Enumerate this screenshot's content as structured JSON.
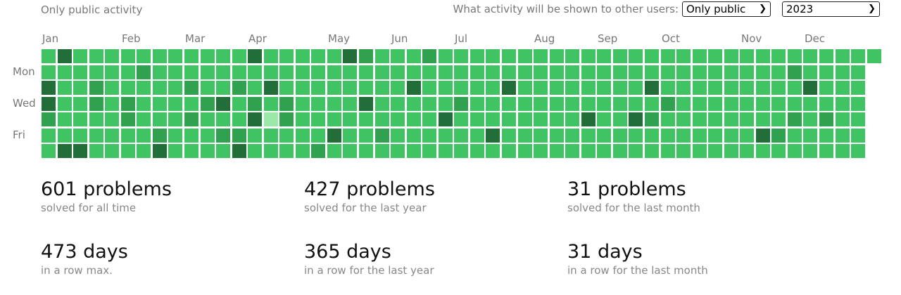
{
  "header": {
    "subtitle": "Only public activity",
    "visibility_label": "What activity will be shown to other users:",
    "visibility_value": "Only public",
    "year_value": "2023"
  },
  "colors": {
    "normal": "#40c463",
    "medium": "#30a14e",
    "dark": "#216e39",
    "light": "#9be9a8"
  },
  "months": [
    "Jan",
    "Feb",
    "Mar",
    "Apr",
    "May",
    "Jun",
    "Jul",
    "Aug",
    "Sep",
    "Oct",
    "Nov",
    "Dec"
  ],
  "day_labels": [
    "Mon",
    "Wed",
    "Fri"
  ],
  "heatmap": {
    "weeks": 53,
    "first_week_start_day": 0,
    "last_week_days": 1,
    "levels": {
      "dark": [
        [
          1,
          0
        ],
        [
          13,
          0
        ],
        [
          19,
          0
        ],
        [
          0,
          2
        ],
        [
          14,
          2
        ],
        [
          23,
          2
        ],
        [
          29,
          2
        ],
        [
          38,
          2
        ],
        [
          48,
          2
        ],
        [
          0,
          3
        ],
        [
          11,
          3
        ],
        [
          20,
          3
        ],
        [
          13,
          4
        ],
        [
          25,
          4
        ],
        [
          34,
          4
        ],
        [
          37,
          4
        ],
        [
          18,
          5
        ],
        [
          28,
          5
        ],
        [
          45,
          5
        ],
        [
          1,
          6
        ],
        [
          2,
          6
        ],
        [
          7,
          6
        ],
        [
          12,
          6
        ]
      ],
      "medium": [
        [
          6,
          1
        ],
        [
          47,
          1
        ],
        [
          3,
          2
        ],
        [
          9,
          2
        ],
        [
          12,
          2
        ],
        [
          3,
          3
        ],
        [
          5,
          3
        ],
        [
          10,
          3
        ],
        [
          13,
          3
        ],
        [
          15,
          3
        ],
        [
          26,
          3
        ],
        [
          39,
          3
        ],
        [
          0,
          4
        ],
        [
          5,
          4
        ],
        [
          9,
          4
        ],
        [
          15,
          4
        ],
        [
          38,
          4
        ],
        [
          47,
          4
        ],
        [
          49,
          4
        ],
        [
          7,
          5
        ],
        [
          11,
          5
        ],
        [
          12,
          5
        ],
        [
          21,
          5
        ],
        [
          46,
          5
        ],
        [
          24,
          0
        ],
        [
          20,
          0
        ],
        [
          17,
          6
        ]
      ],
      "light": [
        [
          14,
          4
        ]
      ]
    }
  },
  "stats": [
    {
      "value": "601 problems",
      "label": "solved for all time"
    },
    {
      "value": "427 problems",
      "label": "solved for the last year"
    },
    {
      "value": "31 problems",
      "label": "solved for the last month"
    },
    {
      "value": "473 days",
      "label": "in a row max."
    },
    {
      "value": "365 days",
      "label": "in a row for the last year"
    },
    {
      "value": "31 days",
      "label": "in a row for the last month"
    }
  ]
}
